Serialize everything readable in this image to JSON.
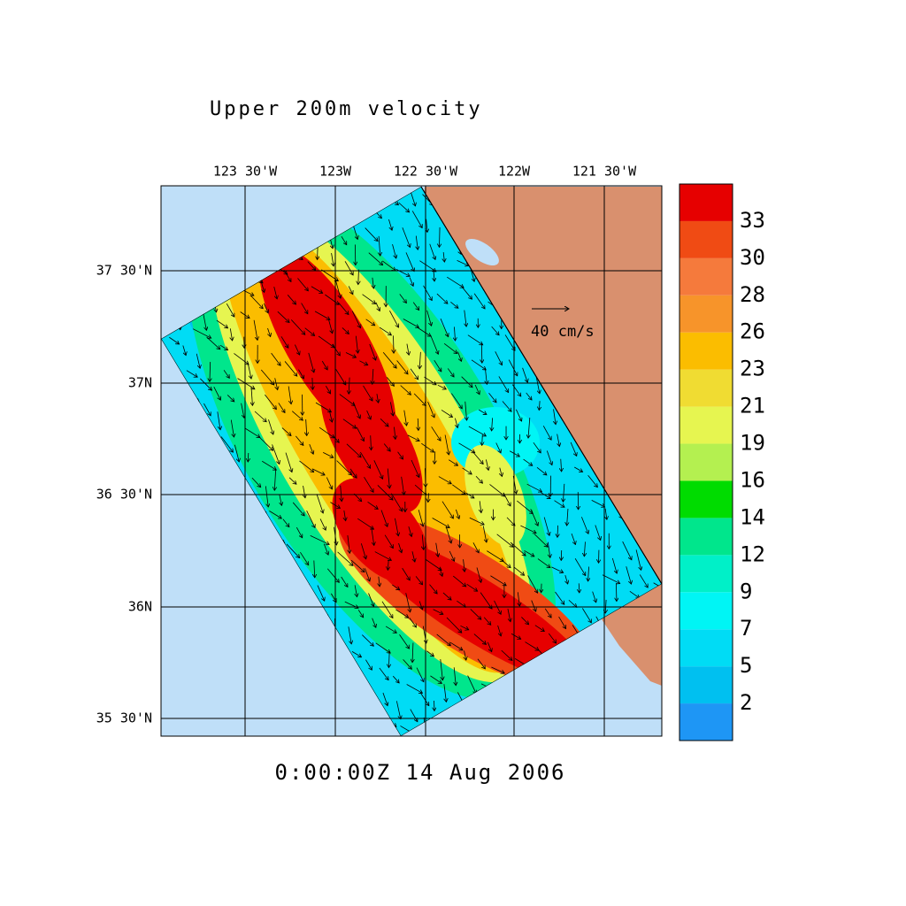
{
  "title": "Upper 200m velocity",
  "map": {
    "lon_labels": [
      "123 30'W",
      "123W",
      "122 30'W",
      "122W",
      "121 30'W"
    ],
    "lat_labels": [
      "37 30'N",
      "37N",
      "36 30'N",
      "36N",
      "35 30'N"
    ],
    "reference_arrow": "40 cm/s",
    "timestamp": "0:00:00Z  14 Aug 2006"
  },
  "colorbar": {
    "labels": [
      2,
      5,
      7,
      9,
      12,
      14,
      16,
      19,
      21,
      23,
      26,
      28,
      30,
      33
    ],
    "colors": [
      "#1e96f5",
      "#00c0f0",
      "#00dcf5",
      "#00f5f5",
      "#00f0c8",
      "#00e68c",
      "#00dc00",
      "#b4f050",
      "#e6f550",
      "#f0dc32",
      "#fbbd00",
      "#f7942a",
      "#f57a3c",
      "#f04b14",
      "#e60000"
    ]
  }
}
